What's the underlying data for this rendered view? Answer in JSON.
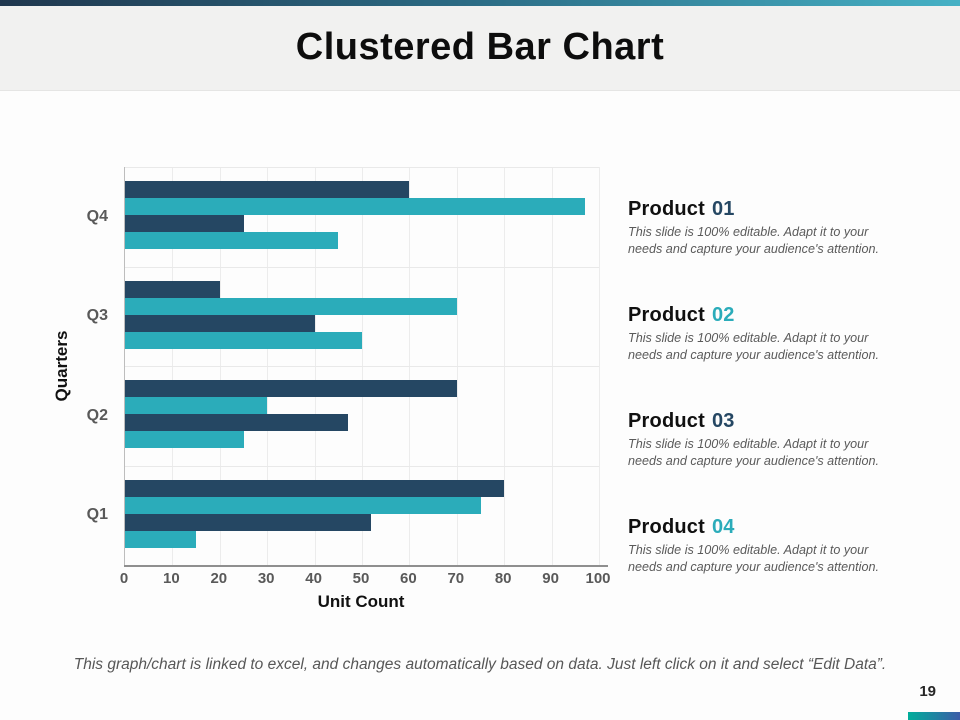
{
  "slide": {
    "title": "Clustered Bar Chart",
    "page_number": "19",
    "footer_note": "This graph/chart is linked to excel, and changes automatically based on data. Just left click on it and select “Edit Data”."
  },
  "chart_data": {
    "type": "bar",
    "orientation": "horizontal",
    "xlabel": "Unit Count",
    "ylabel": "Quarters",
    "xlim": [
      0,
      100
    ],
    "xticks": [
      0,
      10,
      20,
      30,
      40,
      50,
      60,
      70,
      80,
      90,
      100
    ],
    "grid": "light vertical gridlines every 10 units, light horizontal separators between category bands",
    "categories_top_to_bottom": [
      "Q4",
      "Q3",
      "Q2",
      "Q1"
    ],
    "bar_colors": [
      "#254763",
      "#2BACBA",
      "#254763",
      "#2BACBA"
    ],
    "bars_note": "four bars per quarter group, listed top to bottom, colors alternate navy/teal per bar_colors",
    "groups": [
      {
        "label": "Q4",
        "bars": [
          60,
          97,
          25,
          45
        ]
      },
      {
        "label": "Q3",
        "bars": [
          20,
          70,
          40,
          50
        ]
      },
      {
        "label": "Q2",
        "bars": [
          70,
          30,
          47,
          25
        ]
      },
      {
        "label": "Q1",
        "bars": [
          80,
          75,
          52,
          15
        ]
      }
    ]
  },
  "products": [
    {
      "name": "Product",
      "number": "01",
      "number_color": "#254763",
      "description": "This slide is 100% editable. Adapt it to your needs and capture your audience's attention."
    },
    {
      "name": "Product",
      "number": "02",
      "number_color": "#2BACBA",
      "description": "This slide is 100% editable. Adapt it to your needs and capture your audience's attention."
    },
    {
      "name": "Product",
      "number": "03",
      "number_color": "#254763",
      "description": "This slide is 100% editable. Adapt it to your needs and capture your audience's attention."
    },
    {
      "name": "Product",
      "number": "04",
      "number_color": "#2BACBA",
      "description": "This slide is 100% editable. Adapt it to your needs and capture your audience's attention."
    }
  ],
  "colors": {
    "bar_navy": "#254763",
    "bar_teal": "#2BACBA",
    "title_band_bg": "#F1F1F0",
    "top_strip_gradient": [
      "#20374E",
      "#46B1C5"
    ],
    "bottom_strip_gradient": [
      "#00AE9B",
      "#3C5CA8"
    ],
    "axis_text": "#595959"
  }
}
